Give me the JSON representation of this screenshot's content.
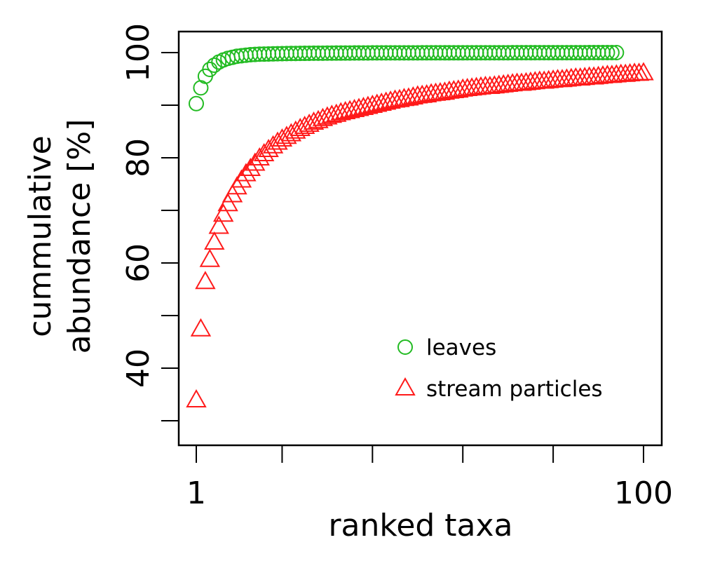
{
  "chart_data": {
    "type": "scatter",
    "xlabel": "ranked taxa",
    "ylabel": [
      "cummulative",
      "abundance [%]"
    ],
    "xlim": [
      1,
      100
    ],
    "ylim": [
      30,
      100
    ],
    "x_ticks": [
      1,
      20,
      40,
      60,
      80,
      100
    ],
    "x_tick_labels": [
      "1",
      "",
      "",
      "",
      "",
      "100"
    ],
    "y_ticks": [
      30,
      40,
      50,
      60,
      70,
      80,
      90,
      100
    ],
    "y_tick_labels": [
      "",
      "40",
      "",
      "60",
      "",
      "80",
      "",
      "100"
    ],
    "grid": false,
    "legend_position": "bottom-right",
    "series": [
      {
        "name": "leaves",
        "marker": "circle",
        "color": "#22bb22",
        "values": [
          90.3,
          93.3,
          95.5,
          96.8,
          97.6,
          98.2,
          98.6,
          98.9,
          99.1,
          99.3,
          99.4,
          99.5,
          99.6,
          99.65,
          99.7,
          99.72,
          99.74,
          99.76,
          99.78,
          99.8,
          99.82,
          99.83,
          99.84,
          99.85,
          99.86,
          99.87,
          99.88,
          99.88,
          99.89,
          99.9,
          99.9,
          99.91,
          99.91,
          99.92,
          99.92,
          99.93,
          99.93,
          99.94,
          99.94,
          99.95,
          99.95,
          99.95,
          99.95,
          99.95,
          99.95,
          99.95,
          99.95,
          99.95,
          99.95,
          99.95,
          99.96,
          99.96,
          99.96,
          99.96,
          99.96,
          99.96,
          99.96,
          99.96,
          99.96,
          99.96,
          99.97,
          99.97,
          99.97,
          99.97,
          99.97,
          99.97,
          99.97,
          99.97,
          99.97,
          99.97,
          99.98,
          99.98,
          99.98,
          99.98,
          99.98,
          99.98,
          99.98,
          99.98,
          99.98,
          99.98,
          99.99,
          99.99,
          99.99,
          99.99,
          99.99,
          99.99,
          99.99,
          100,
          100,
          100,
          100,
          100,
          100,
          100
        ]
      },
      {
        "name": "stream particles",
        "marker": "triangle",
        "color": "#ff1a1a",
        "values": [
          34,
          47.5,
          56.5,
          60.7,
          64,
          67,
          69.3,
          71.3,
          73,
          74.5,
          75.8,
          77,
          78,
          79,
          80,
          80.8,
          81.6,
          82.3,
          83,
          83.6,
          84.1,
          84.6,
          85.1,
          85.6,
          86,
          86.4,
          86.8,
          87.1,
          87.5,
          87.8,
          88.1,
          88.3,
          88.6,
          88.8,
          89,
          89.2,
          89.4,
          89.6,
          89.8,
          90,
          90.2,
          90.4,
          90.6,
          90.8,
          91,
          91.1,
          91.3,
          91.4,
          91.6,
          91.8,
          91.9,
          92,
          92.2,
          92.3,
          92.4,
          92.5,
          92.7,
          92.8,
          92.9,
          93.1,
          93.2,
          93.3,
          93.4,
          93.5,
          93.6,
          93.6,
          93.7,
          93.8,
          93.9,
          94,
          94.1,
          94.2,
          94.2,
          94.3,
          94.4,
          94.5,
          94.6,
          94.6,
          94.7,
          94.8,
          94.9,
          94.9,
          95,
          95.1,
          95.2,
          95.2,
          95.3,
          95.4,
          95.4,
          95.5,
          95.6,
          95.7,
          95.7,
          95.8,
          95.9,
          95.9,
          96,
          96.1,
          96.1,
          96.2
        ]
      }
    ]
  }
}
